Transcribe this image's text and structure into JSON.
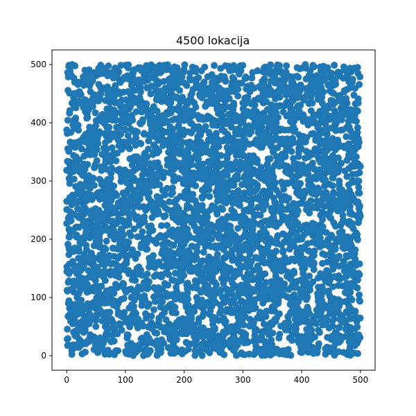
{
  "chart_data": {
    "type": "scatter",
    "title": "4500 lokacija",
    "xlabel": "",
    "ylabel": "",
    "xlim": [
      -25,
      525
    ],
    "ylim": [
      -25,
      525
    ],
    "xticks": [
      0,
      100,
      200,
      300,
      400,
      500
    ],
    "yticks": [
      0,
      100,
      200,
      300,
      400,
      500
    ],
    "x_tick_labels": [
      "0",
      "100",
      "200",
      "300",
      "400",
      "500"
    ],
    "y_tick_labels": [
      "0",
      "100",
      "200",
      "300",
      "400",
      "500"
    ],
    "point_count": 4500,
    "point_color": "#1f77b4",
    "x_range_of_points": [
      0,
      500
    ],
    "y_range_of_points": [
      0,
      500
    ],
    "distribution": "uniform random",
    "grid": false,
    "legend": "none"
  }
}
